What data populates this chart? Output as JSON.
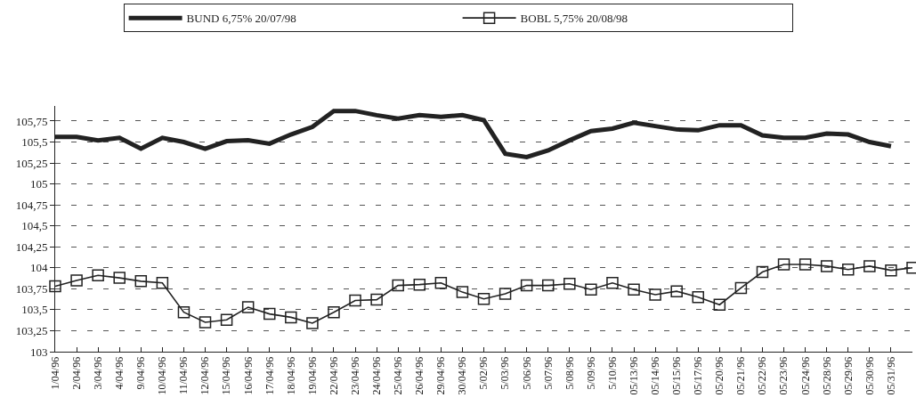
{
  "chart_data": {
    "type": "line",
    "categories": [
      "1/04/96",
      "2/04/96",
      "3/04/96",
      "4/04/96",
      "9/04/96",
      "10/04/96",
      "11/04/96",
      "12/04/96",
      "15/04/96",
      "16/04/96",
      "17/04/96",
      "18/04/96",
      "19/04/96",
      "22/04/96",
      "23/04/96",
      "24/04/96",
      "25/04/96",
      "26/04/96",
      "29/04/96",
      "30/04/96",
      "5/02/96",
      "5/03/96",
      "5/06/96",
      "5/07/96",
      "5/08/96",
      "5/09/96",
      "5/10/96",
      "05/13/96",
      "05/14/96",
      "05/15/96",
      "05/17/96",
      "05/20/96",
      "05/21/96",
      "05/22/96",
      "05/23/96",
      "05/24/96",
      "05/28/96",
      "05/29/96",
      "05/30/96",
      "05/31/96",
      null
    ],
    "series": [
      {
        "name": "BUND 6,75% 20/07/98",
        "color": "#222222",
        "marker": "none",
        "values": [
          105.56,
          105.56,
          105.52,
          105.55,
          105.42,
          105.55,
          105.5,
          105.42,
          105.51,
          105.52,
          105.48,
          105.59,
          105.68,
          105.87,
          105.87,
          105.82,
          105.78,
          105.82,
          105.8,
          105.82,
          105.76,
          105.36,
          105.32,
          105.4,
          105.52,
          105.63,
          105.66,
          105.73,
          105.69,
          105.65,
          105.64,
          105.7,
          105.7,
          105.58,
          105.55,
          105.55,
          105.6,
          105.59,
          105.5,
          105.45,
          null
        ]
      },
      {
        "name": "BOBL 5,75% 20/08/98",
        "color": "#222222",
        "marker": "square",
        "values": [
          103.78,
          103.85,
          103.91,
          103.88,
          103.84,
          103.82,
          103.47,
          103.35,
          103.38,
          103.53,
          103.45,
          103.41,
          103.34,
          103.47,
          103.61,
          103.62,
          103.79,
          103.8,
          103.82,
          103.71,
          103.63,
          103.69,
          103.79,
          103.79,
          103.81,
          103.74,
          103.82,
          103.74,
          103.68,
          103.72,
          103.65,
          103.56,
          103.76,
          103.95,
          104.04,
          104.04,
          104.02,
          103.98,
          104.02,
          103.97,
          104.0
        ]
      }
    ],
    "ylim": [
      103,
      105.93
    ],
    "yticks": [
      {
        "value": 103,
        "label": "103"
      },
      {
        "value": 103.25,
        "label": "103,25"
      },
      {
        "value": 103.5,
        "label": "103,5"
      },
      {
        "value": 103.75,
        "label": "103,75"
      },
      {
        "value": 104,
        "label": "104"
      },
      {
        "value": 104.25,
        "label": "104,25"
      },
      {
        "value": 104.5,
        "label": "104,5"
      },
      {
        "value": 104.75,
        "label": "104,75"
      },
      {
        "value": 105,
        "label": "105"
      },
      {
        "value": 105.25,
        "label": "105,25"
      },
      {
        "value": 105.5,
        "label": "105,5"
      },
      {
        "value": 105.75,
        "label": "105,75"
      }
    ],
    "grid": "y",
    "legend": "top",
    "line_style": "solid"
  }
}
